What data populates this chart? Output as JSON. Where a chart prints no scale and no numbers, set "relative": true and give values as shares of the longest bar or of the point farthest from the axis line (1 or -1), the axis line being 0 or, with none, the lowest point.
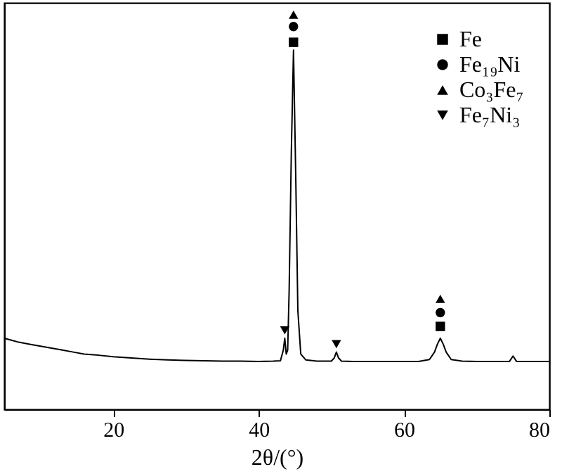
{
  "chart_data": {
    "type": "line",
    "relative": true,
    "xlabel": "2θ/(°)",
    "xlim": [
      5,
      80
    ],
    "xticks": [
      20,
      40,
      60,
      80
    ],
    "grid": false,
    "legend": "top right",
    "series": [
      {
        "color": "#000000",
        "marker": "none",
        "x": [
          5,
          6,
          7,
          8.5,
          10,
          11.5,
          13,
          14.5,
          16,
          18,
          20,
          22.5,
          25,
          27.5,
          30,
          32.5,
          35,
          37.5,
          40,
          42,
          43.0,
          43.4,
          43.6,
          43.8,
          44.0,
          44.2,
          44.5,
          44.8,
          45.1,
          45.4,
          45.8,
          46.5,
          48,
          50,
          50.4,
          50.7,
          51.0,
          51.4,
          53,
          55,
          58,
          60,
          62,
          63.5,
          64.2,
          64.6,
          65,
          65.4,
          65.8,
          66.5,
          68,
          70,
          72.5,
          74.5,
          75,
          75.5,
          77.5,
          80
        ],
        "values": [
          0.18,
          0.175,
          0.17,
          0.165,
          0.16,
          0.155,
          0.15,
          0.145,
          0.14,
          0.137,
          0.133,
          0.13,
          0.127,
          0.125,
          0.124,
          0.123,
          0.122,
          0.122,
          0.121,
          0.122,
          0.123,
          0.15,
          0.18,
          0.14,
          0.15,
          0.3,
          0.65,
          0.91,
          0.6,
          0.25,
          0.14,
          0.125,
          0.122,
          0.122,
          0.13,
          0.145,
          0.13,
          0.122,
          0.121,
          0.121,
          0.121,
          0.121,
          0.121,
          0.126,
          0.145,
          0.165,
          0.18,
          0.165,
          0.145,
          0.126,
          0.122,
          0.121,
          0.121,
          0.121,
          0.135,
          0.121,
          0.121,
          0.121
        ]
      },
      {
        "type": "scatter",
        "name": "Fe",
        "color": "#000000",
        "marker": "square",
        "x": [
          44.8,
          65
        ],
        "values": [
          0.93,
          0.21
        ]
      },
      {
        "type": "scatter",
        "name": "Fe₁₉Ni",
        "color": "#000000",
        "marker": "circle",
        "x": [
          44.8,
          65
        ],
        "values": [
          0.97,
          0.245
        ]
      },
      {
        "type": "scatter",
        "name": "Co₃Fe₇",
        "color": "#000000",
        "marker": "triangle",
        "x": [
          44.8,
          65
        ],
        "values": [
          1.0,
          0.28
        ]
      },
      {
        "type": "scatter",
        "name": "Fe₇Ni₃",
        "color": "#000000",
        "marker": "triangle-down",
        "x": [
          43.6,
          50.7
        ],
        "values": [
          0.2,
          0.165
        ]
      }
    ]
  }
}
